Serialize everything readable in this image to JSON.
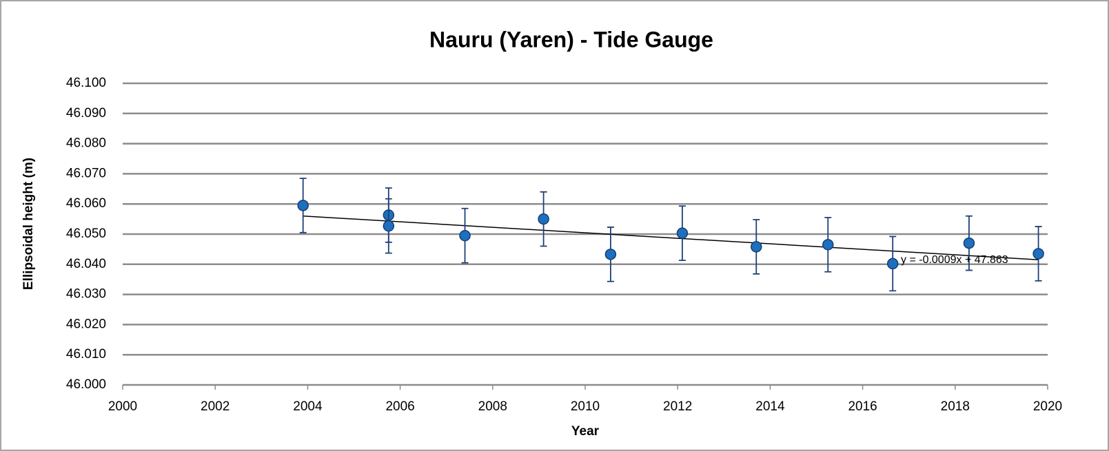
{
  "chart_data": {
    "type": "scatter",
    "title": "Nauru (Yaren) - Tide Gauge",
    "x_label": "Year",
    "y_label": "Ellipsoidal height (m)",
    "xlim": [
      2000,
      2020
    ],
    "xticks": [
      2000,
      2002,
      2004,
      2006,
      2008,
      2010,
      2012,
      2014,
      2016,
      2018,
      2020
    ],
    "ylim": [
      46.0,
      46.1
    ],
    "yticks": [
      {
        "value": 46.0,
        "label": "46.000"
      },
      {
        "value": 46.01,
        "label": "46.010"
      },
      {
        "value": 46.02,
        "label": "46.020"
      },
      {
        "value": 46.03,
        "label": "46.030"
      },
      {
        "value": 46.04,
        "label": "46.040"
      },
      {
        "value": 46.05,
        "label": "46.050"
      },
      {
        "value": 46.06,
        "label": "46.060"
      },
      {
        "value": 46.07,
        "label": "46.070"
      },
      {
        "value": 46.08,
        "label": "46.080"
      },
      {
        "value": 46.09,
        "label": "46.090"
      },
      {
        "value": 46.1,
        "label": "46.100"
      }
    ],
    "grid": true,
    "series": [
      {
        "color": "#1f6fbf",
        "x": [
          2003.9,
          2005.75,
          2005.75,
          2007.4,
          2009.1,
          2010.55,
          2012.1,
          2013.7,
          2015.25,
          2016.65,
          2018.3,
          2019.8
        ],
        "values": [
          46.0595,
          46.0563,
          46.0527,
          46.0495,
          46.055,
          46.0433,
          46.0503,
          46.0458,
          46.0465,
          46.0402,
          46.047,
          46.0435
        ],
        "errors": [
          0.009,
          0.009,
          0.009,
          0.009,
          0.009,
          0.009,
          0.009,
          0.009,
          0.009,
          0.009,
          0.009,
          0.009
        ]
      }
    ],
    "trendline": {
      "x": [
        2003.9,
        2019.8
      ],
      "values": [
        46.056,
        46.0415
      ],
      "label": "y = -0.0009x + 47.863"
    }
  }
}
